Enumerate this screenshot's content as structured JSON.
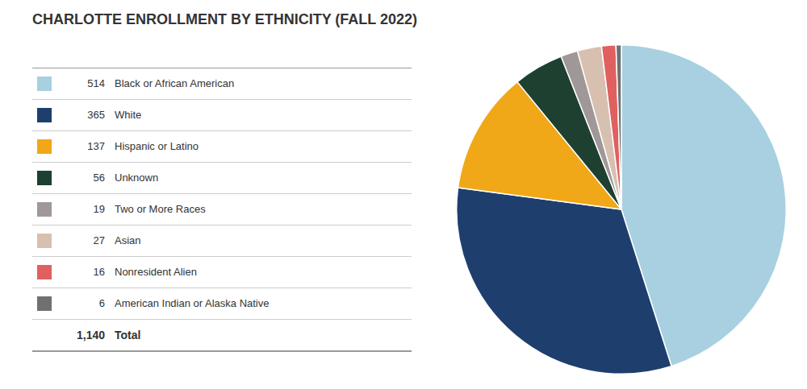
{
  "chart_data": {
    "type": "pie",
    "title": "CHARLOTTE ENROLLMENT BY ETHNICITY (FALL 2022)",
    "categories": [
      "Black or African American",
      "White",
      "Hispanic or Latino",
      "Unknown",
      "Two or More Races",
      "Asian",
      "Nonresident Alien",
      "American Indian or Alaska Native"
    ],
    "values": [
      514,
      365,
      137,
      56,
      19,
      27,
      16,
      6
    ],
    "colors": [
      "#a8d0e0",
      "#1e3f6e",
      "#f0a818",
      "#1e4030",
      "#a09898",
      "#d8c0b0",
      "#e06060",
      "#707070"
    ],
    "total": {
      "name": "Total",
      "value": 1140,
      "label": "1,140"
    },
    "legend": "left"
  }
}
